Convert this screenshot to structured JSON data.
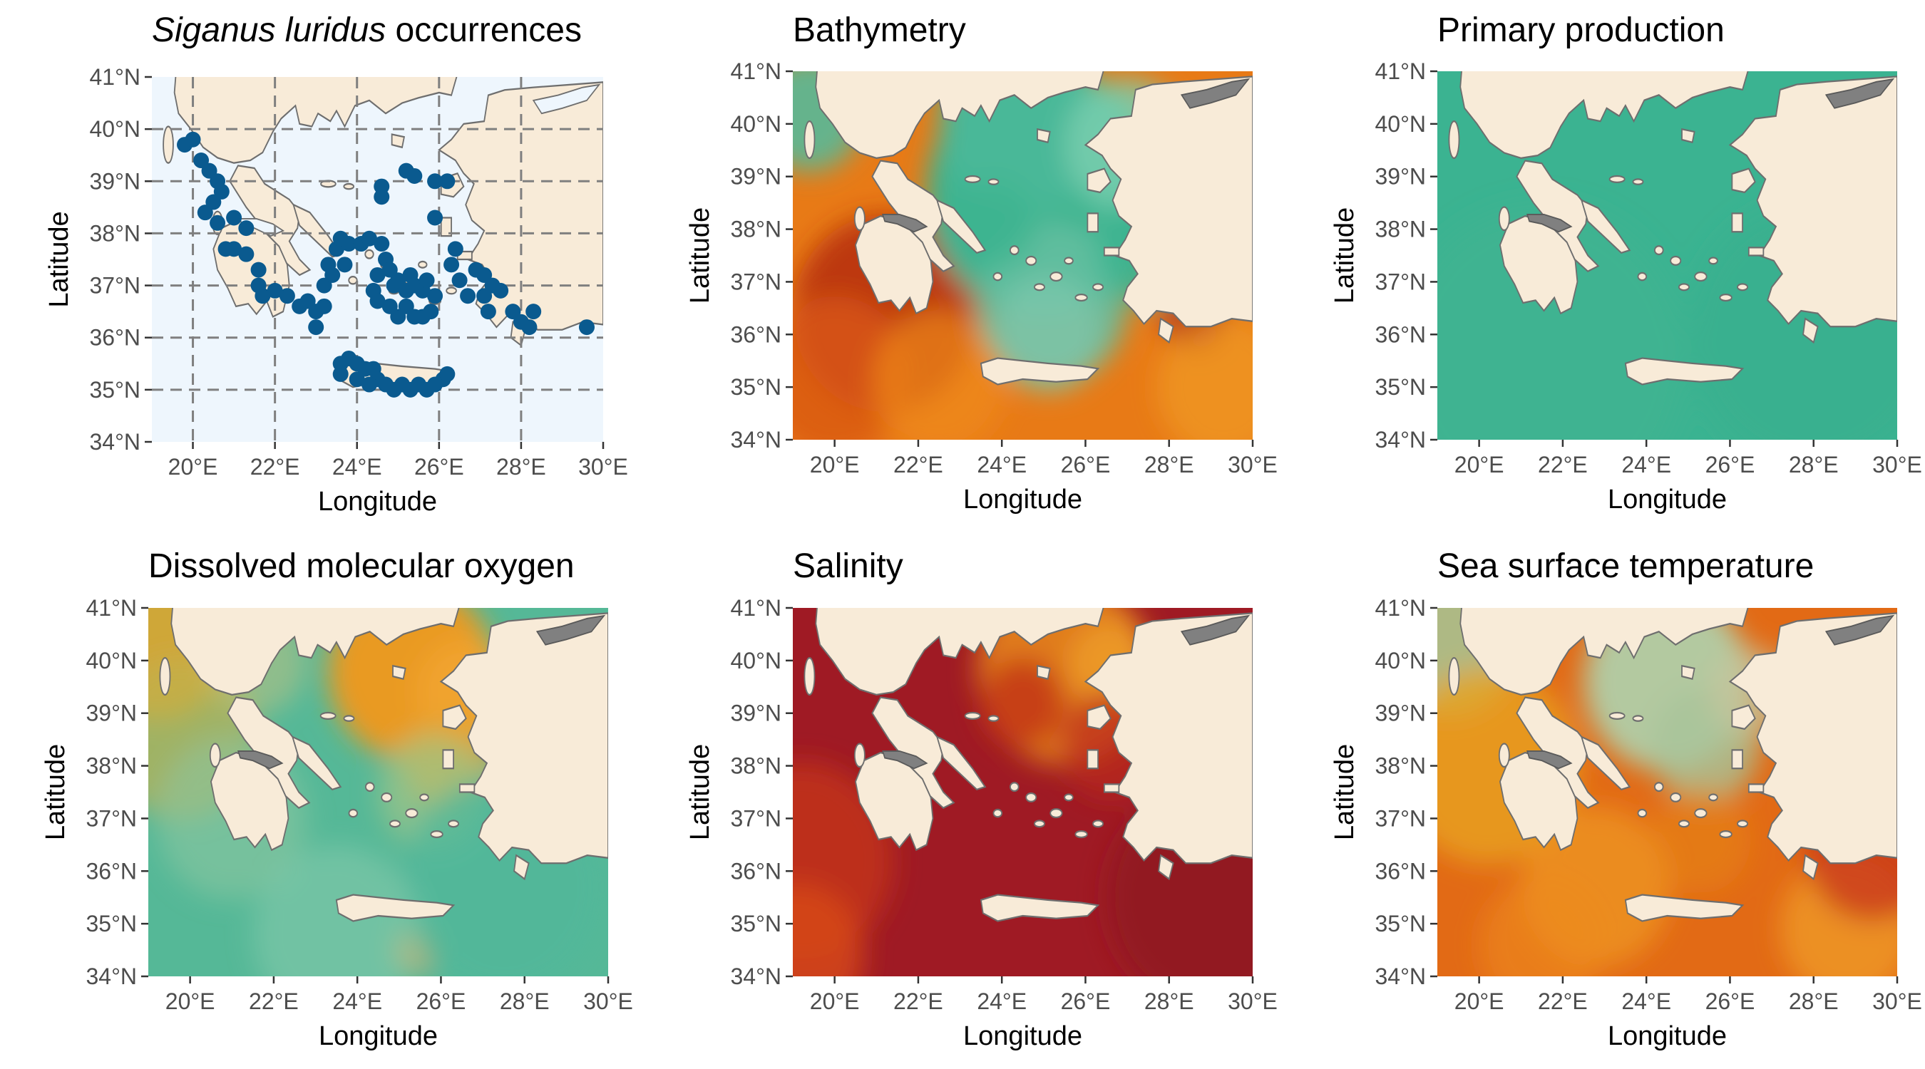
{
  "figure": {
    "panels": [
      {
        "id": "occ",
        "title_italic": "Siganus luridus",
        "title_rest": " occurrences",
        "style": "occ"
      },
      {
        "id": "bath",
        "title": "Bathymetry",
        "style": "bath"
      },
      {
        "id": "pp",
        "title": "Primary production",
        "style": "pp"
      },
      {
        "id": "oxy",
        "title": "Dissolved molecular oxygen",
        "style": "oxy"
      },
      {
        "id": "sal",
        "title": "Salinity",
        "style": "sal"
      },
      {
        "id": "sst",
        "title": "Sea surface temperature",
        "style": "sst"
      }
    ],
    "x_axis_label": "Longitude",
    "y_axis_label": "Latitude",
    "x_ticks": [
      "20°E",
      "22°E",
      "24°E",
      "26°E",
      "28°E",
      "30°E"
    ],
    "y_ticks": [
      "41°N",
      "40°N",
      "39°N",
      "38°N",
      "37°N",
      "36°N",
      "35°N",
      "34°N"
    ]
  },
  "chart_data": {
    "type": "scatter",
    "title": "Siganus luridus occurrences",
    "xlabel": "Longitude",
    "ylabel": "Latitude",
    "xlim": [
      19,
      30
    ],
    "ylim": [
      34,
      41
    ],
    "point_color": "#0a5a8f",
    "points": [
      [
        19.8,
        39.7
      ],
      [
        20.0,
        39.8
      ],
      [
        20.2,
        39.4
      ],
      [
        20.4,
        39.2
      ],
      [
        20.6,
        39.0
      ],
      [
        20.7,
        38.8
      ],
      [
        20.5,
        38.6
      ],
      [
        20.3,
        38.4
      ],
      [
        20.6,
        38.2
      ],
      [
        21.0,
        38.3
      ],
      [
        21.3,
        38.1
      ],
      [
        20.8,
        37.7
      ],
      [
        21.0,
        37.7
      ],
      [
        21.3,
        37.6
      ],
      [
        21.6,
        37.3
      ],
      [
        21.6,
        37.0
      ],
      [
        21.7,
        36.8
      ],
      [
        22.0,
        36.9
      ],
      [
        22.3,
        36.8
      ],
      [
        22.6,
        36.6
      ],
      [
        22.8,
        36.7
      ],
      [
        23.0,
        36.5
      ],
      [
        23.0,
        36.2
      ],
      [
        23.2,
        36.6
      ],
      [
        23.2,
        37.0
      ],
      [
        23.3,
        37.4
      ],
      [
        23.5,
        37.7
      ],
      [
        23.6,
        37.9
      ],
      [
        23.8,
        37.8
      ],
      [
        24.1,
        37.8
      ],
      [
        24.3,
        37.9
      ],
      [
        23.4,
        37.2
      ],
      [
        23.7,
        37.4
      ],
      [
        24.6,
        38.9
      ],
      [
        24.6,
        38.7
      ],
      [
        25.2,
        39.2
      ],
      [
        25.4,
        39.1
      ],
      [
        25.9,
        39.0
      ],
      [
        26.2,
        39.0
      ],
      [
        25.9,
        38.3
      ],
      [
        26.4,
        37.7
      ],
      [
        26.3,
        37.4
      ],
      [
        26.5,
        37.1
      ],
      [
        24.6,
        37.8
      ],
      [
        24.7,
        37.5
      ],
      [
        24.5,
        37.2
      ],
      [
        24.4,
        36.9
      ],
      [
        24.5,
        36.7
      ],
      [
        24.8,
        37.3
      ],
      [
        24.9,
        37.0
      ],
      [
        25.0,
        37.1
      ],
      [
        25.2,
        36.9
      ],
      [
        25.3,
        37.2
      ],
      [
        25.4,
        37.0
      ],
      [
        25.6,
        36.9
      ],
      [
        25.7,
        37.1
      ],
      [
        25.9,
        36.8
      ],
      [
        25.8,
        36.5
      ],
      [
        25.6,
        36.4
      ],
      [
        25.2,
        36.6
      ],
      [
        25.0,
        36.4
      ],
      [
        25.4,
        36.4
      ],
      [
        24.8,
        36.6
      ],
      [
        26.9,
        37.3
      ],
      [
        27.1,
        37.2
      ],
      [
        27.3,
        37.0
      ],
      [
        27.1,
        36.8
      ],
      [
        27.5,
        36.9
      ],
      [
        27.8,
        36.5
      ],
      [
        28.0,
        36.3
      ],
      [
        28.2,
        36.2
      ],
      [
        28.3,
        36.5
      ],
      [
        27.2,
        36.5
      ],
      [
        26.7,
        36.8
      ],
      [
        29.6,
        36.2
      ],
      [
        23.6,
        35.5
      ],
      [
        23.8,
        35.6
      ],
      [
        24.0,
        35.5
      ],
      [
        24.2,
        35.4
      ],
      [
        24.4,
        35.4
      ],
      [
        24.5,
        35.2
      ],
      [
        24.7,
        35.1
      ],
      [
        24.9,
        35.0
      ],
      [
        25.1,
        35.1
      ],
      [
        25.3,
        35.0
      ],
      [
        25.5,
        35.1
      ],
      [
        25.7,
        35.0
      ],
      [
        25.9,
        35.1
      ],
      [
        26.1,
        35.2
      ],
      [
        26.2,
        35.3
      ],
      [
        24.0,
        35.2
      ],
      [
        24.3,
        35.1
      ],
      [
        23.6,
        35.3
      ]
    ],
    "layers": [
      {
        "name": "Bathymetry",
        "colormap": "teal (shallow) to deep orange/red (deep)"
      },
      {
        "name": "Primary production",
        "colormap": "uniform teal"
      },
      {
        "name": "Dissolved molecular oxygen",
        "colormap": "teal to orange"
      },
      {
        "name": "Salinity",
        "colormap": "orange to dark red"
      },
      {
        "name": "Sea surface temperature",
        "colormap": "teal to orange-red"
      }
    ]
  },
  "colors": {
    "land": "#f8ebd8",
    "sea_occ": "#eef6fd",
    "teal": "#3bb391",
    "orange": "#ef8a1c",
    "dark_red": "#9e1525",
    "grey_land": "#808080",
    "grid": "#7f7f7f"
  }
}
